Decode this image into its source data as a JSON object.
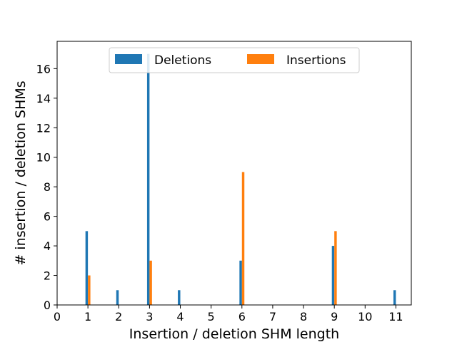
{
  "chart_data": {
    "type": "bar",
    "xlabel": "Insertion / deletion SHM length",
    "ylabel": "# insertion / deletion SHMs",
    "xlim": [
      0,
      11.5
    ],
    "ylim": [
      0,
      17.85
    ],
    "x_ticks": [
      "0",
      "1",
      "2",
      "3",
      "4",
      "5",
      "6",
      "7",
      "8",
      "9",
      "10",
      "11"
    ],
    "y_ticks": [
      "0",
      "2",
      "4",
      "6",
      "8",
      "10",
      "12",
      "14",
      "16"
    ],
    "legend_position": "top-center",
    "series": [
      {
        "name": "Deletions",
        "color": "#1f77b4",
        "x": [
          1,
          2,
          3,
          4,
          6,
          9,
          11
        ],
        "values": [
          5,
          1,
          17,
          1,
          3,
          4,
          1
        ]
      },
      {
        "name": "Insertions",
        "color": "#ff7f0e",
        "x": [
          1,
          3,
          6,
          9
        ],
        "values": [
          2,
          3,
          9,
          5
        ]
      }
    ]
  }
}
